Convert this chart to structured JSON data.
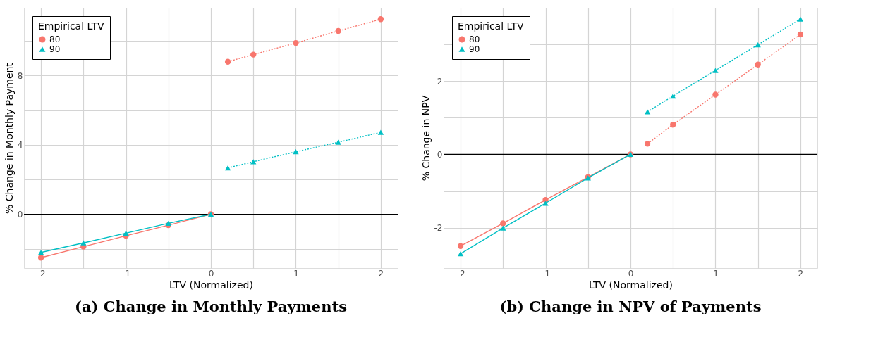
{
  "chart_data": [
    {
      "type": "line",
      "title": "(a) Change in Monthly Payments",
      "xlabel": "LTV (Normalized)",
      "ylabel": "% Change in Monthly Payment",
      "legend_title": "Empirical LTV",
      "legend": "top left",
      "grid": true,
      "xlim": [
        -2.2,
        2.2
      ],
      "ylim": [
        -3.1,
        11.9
      ],
      "xticks": [
        -2,
        {
          "value": -1.5,
          "label": null
        },
        -1,
        {
          "value": -0.5,
          "label": null
        },
        0,
        {
          "value": 0.5,
          "label": null
        },
        1,
        {
          "value": 1.5,
          "label": null
        },
        2
      ],
      "yticks": [
        {
          "value": -2,
          "label": null
        },
        0,
        {
          "value": 2,
          "label": null
        },
        4,
        {
          "value": 6,
          "label": null
        },
        8,
        {
          "value": 10,
          "label": null
        }
      ],
      "ref_lines": [
        {
          "axis": "y",
          "value": 0,
          "color": "#000000"
        }
      ],
      "series": [
        {
          "name": "80",
          "color": "#f8766d",
          "marker": "circle",
          "line_style": "solid",
          "x": [
            -2,
            -1.5,
            -1,
            -0.5,
            0
          ],
          "values": [
            -2.5,
            -1.87,
            -1.24,
            -0.63,
            0
          ]
        },
        {
          "name": "90",
          "color": "#00bfc4",
          "marker": "triangle",
          "line_style": "solid",
          "x": [
            -2,
            -1.5,
            -1,
            -0.5,
            0
          ],
          "values": [
            -2.2,
            -1.65,
            -1.09,
            -0.52,
            0
          ]
        },
        {
          "color": "#f8766d",
          "marker": "circle",
          "line_style": "dotted",
          "x": [
            0.2,
            0.5,
            1,
            1.5,
            2
          ],
          "values": [
            8.79,
            9.2,
            9.87,
            10.56,
            11.24
          ]
        },
        {
          "color": "#00bfc4",
          "marker": "triangle",
          "line_style": "dotted",
          "x": [
            0.2,
            0.5,
            1,
            1.5,
            2
          ],
          "values": [
            2.67,
            3.03,
            3.6,
            4.15,
            4.72
          ]
        }
      ]
    },
    {
      "type": "line",
      "title": "(b) Change in NPV of Payments",
      "xlabel": "LTV (Normalized)",
      "ylabel": "% Change in NPV",
      "legend_title": "Empirical LTV",
      "legend": "top left",
      "grid": true,
      "xlim": [
        -2.2,
        2.2
      ],
      "ylim": [
        -3.1,
        4.0
      ],
      "xticks": [
        -2,
        {
          "value": -1.5,
          "label": null
        },
        -1,
        {
          "value": -0.5,
          "label": null
        },
        0,
        {
          "value": 0.5,
          "label": null
        },
        1,
        {
          "value": 1.5,
          "label": null
        },
        2
      ],
      "yticks": [
        {
          "value": -3,
          "label": null
        },
        -2,
        {
          "value": -1,
          "label": null
        },
        0,
        {
          "value": 1,
          "label": null
        },
        2,
        {
          "value": 3,
          "label": null
        }
      ],
      "ref_lines": [
        {
          "axis": "y",
          "value": 0,
          "color": "#000000"
        }
      ],
      "series": [
        {
          "name": "80",
          "color": "#f8766d",
          "marker": "circle",
          "line_style": "solid",
          "x": [
            -2,
            -1.5,
            -1,
            -0.5,
            0
          ],
          "values": [
            -2.5,
            -1.88,
            -1.24,
            -0.62,
            0
          ]
        },
        {
          "name": "90",
          "color": "#00bfc4",
          "marker": "triangle",
          "line_style": "solid",
          "x": [
            -2,
            -1.5,
            -1,
            -0.5,
            0
          ],
          "values": [
            -2.71,
            -2.01,
            -1.33,
            -0.64,
            0
          ]
        },
        {
          "color": "#f8766d",
          "marker": "circle",
          "line_style": "dotted",
          "x": [
            0.2,
            0.5,
            1,
            1.5,
            2
          ],
          "values": [
            0.29,
            0.81,
            1.63,
            2.45,
            3.27
          ]
        },
        {
          "color": "#00bfc4",
          "marker": "triangle",
          "line_style": "dotted",
          "x": [
            0.2,
            0.5,
            1,
            1.5,
            2
          ],
          "values": [
            1.16,
            1.59,
            2.29,
            2.99,
            3.69
          ]
        }
      ]
    }
  ]
}
